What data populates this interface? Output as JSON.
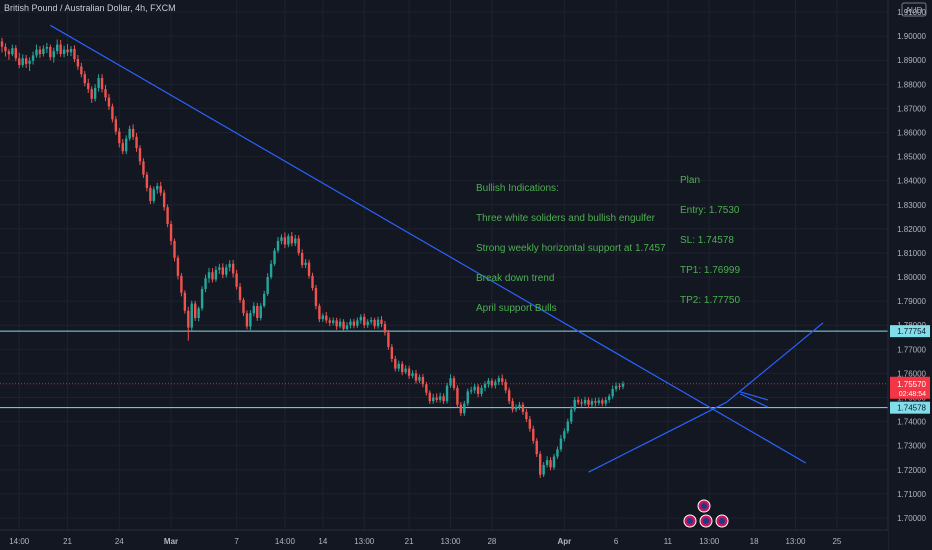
{
  "title": "British Pound / Australian Dollar, 4h, FXCM",
  "currency_badge": "AUD",
  "colors": {
    "background": "#131722",
    "grid": "#1e222d",
    "up": "#26a69a",
    "down": "#ef5350",
    "trendline": "#2962ff",
    "hline": "#80deea",
    "annotation": "#4caf50",
    "axis_text": "#b2b5be",
    "price_label": "#f23645"
  },
  "chart_data": {
    "type": "candlestick",
    "ylim": [
      1.695,
      1.915
    ],
    "y_ticks": [
      1.7,
      1.71,
      1.72,
      1.73,
      1.74,
      1.75,
      1.76,
      1.77,
      1.78,
      1.79,
      1.8,
      1.81,
      1.82,
      1.83,
      1.84,
      1.85,
      1.86,
      1.87,
      1.88,
      1.89,
      1.9,
      1.91
    ],
    "y_tick_labels": [
      "1.70000",
      "1.71000",
      "1.72000",
      "1.73000",
      "1.74000",
      "1.75000",
      "1.76000",
      "1.77000",
      "1.78000",
      "1.79000",
      "1.80000",
      "1.81000",
      "1.82000",
      "1.83000",
      "1.84000",
      "1.85000",
      "1.86000",
      "1.87000",
      "1.88000",
      "1.89000",
      "1.90000",
      "1.91000"
    ],
    "x_tick_labels": [
      "14:00",
      "21",
      "24",
      "Mar",
      "7",
      "14:00",
      "14",
      "13:00",
      "21",
      "13:00",
      "28",
      "Apr",
      "6",
      "11",
      "13:00",
      "18",
      "13:00",
      "25"
    ],
    "x_tick_bars": [
      5,
      19,
      34,
      49,
      68,
      82,
      93,
      105,
      118,
      130,
      142,
      163,
      178,
      193,
      205,
      218,
      230,
      242
    ],
    "last_price": {
      "value": 1.7557,
      "label": "1.75570",
      "countdown": "02:48:54"
    },
    "grid": true,
    "candles": [
      [
        1.8978,
        1.8993,
        1.8932,
        1.8956
      ],
      [
        1.8956,
        1.897,
        1.8915,
        1.8937
      ],
      [
        1.8937,
        1.8947,
        1.8902,
        1.8925
      ],
      [
        1.8925,
        1.8965,
        1.8917,
        1.895
      ],
      [
        1.895,
        1.8963,
        1.8896,
        1.8908
      ],
      [
        1.8908,
        1.8931,
        1.8867,
        1.888
      ],
      [
        1.888,
        1.8924,
        1.887,
        1.8908
      ],
      [
        1.8908,
        1.8922,
        1.8868,
        1.8885
      ],
      [
        1.8885,
        1.8912,
        1.8855,
        1.8898
      ],
      [
        1.8898,
        1.8936,
        1.8882,
        1.892
      ],
      [
        1.892,
        1.8965,
        1.891,
        1.8944
      ],
      [
        1.8944,
        1.8959,
        1.891,
        1.8926
      ],
      [
        1.8926,
        1.8962,
        1.8915,
        1.8948
      ],
      [
        1.8948,
        1.8972,
        1.893,
        1.8955
      ],
      [
        1.8955,
        1.8965,
        1.89,
        1.8912
      ],
      [
        1.8912,
        1.8952,
        1.889,
        1.8938
      ],
      [
        1.8938,
        1.8986,
        1.8925,
        1.8965
      ],
      [
        1.8965,
        1.8984,
        1.8914,
        1.8926
      ],
      [
        1.8926,
        1.896,
        1.8912,
        1.8944
      ],
      [
        1.8944,
        1.8967,
        1.8918,
        1.8933
      ],
      [
        1.8933,
        1.8959,
        1.8917,
        1.8947
      ],
      [
        1.8947,
        1.8962,
        1.8892,
        1.8905
      ],
      [
        1.8905,
        1.8922,
        1.886,
        1.8874
      ],
      [
        1.8874,
        1.8889,
        1.8829,
        1.8842
      ],
      [
        1.8842,
        1.8855,
        1.8792,
        1.8805
      ],
      [
        1.8805,
        1.8823,
        1.8764,
        1.878
      ],
      [
        1.878,
        1.8792,
        1.8723,
        1.874
      ],
      [
        1.874,
        1.88,
        1.8729,
        1.8785
      ],
      [
        1.8785,
        1.8842,
        1.877,
        1.8826
      ],
      [
        1.8826,
        1.8842,
        1.8766,
        1.878
      ],
      [
        1.878,
        1.8797,
        1.873,
        1.8745
      ],
      [
        1.8745,
        1.876,
        1.8694,
        1.8708
      ],
      [
        1.8708,
        1.872,
        1.8642,
        1.8655
      ],
      [
        1.8655,
        1.8668,
        1.8591,
        1.8604
      ],
      [
        1.8604,
        1.8619,
        1.8538,
        1.8556
      ],
      [
        1.8556,
        1.8573,
        1.851,
        1.8522
      ],
      [
        1.8522,
        1.8588,
        1.851,
        1.8575
      ],
      [
        1.8575,
        1.8628,
        1.8566,
        1.8615
      ],
      [
        1.8615,
        1.8634,
        1.857,
        1.8582
      ],
      [
        1.8582,
        1.8598,
        1.852,
        1.8535
      ],
      [
        1.8535,
        1.8547,
        1.8465,
        1.848
      ],
      [
        1.848,
        1.8493,
        1.8412,
        1.8425
      ],
      [
        1.8425,
        1.8437,
        1.8356,
        1.837
      ],
      [
        1.837,
        1.8381,
        1.8303,
        1.8316
      ],
      [
        1.8316,
        1.8376,
        1.8306,
        1.8364
      ],
      [
        1.8364,
        1.8391,
        1.8346,
        1.8378
      ],
      [
        1.8378,
        1.8395,
        1.8337,
        1.835
      ],
      [
        1.835,
        1.8362,
        1.8276,
        1.829
      ],
      [
        1.829,
        1.8302,
        1.8207,
        1.822
      ],
      [
        1.822,
        1.8233,
        1.8133,
        1.815
      ],
      [
        1.815,
        1.816,
        1.8065,
        1.808
      ],
      [
        1.808,
        1.809,
        1.799,
        1.8005
      ],
      [
        1.8005,
        1.8017,
        1.792,
        1.7935
      ],
      [
        1.7935,
        1.7945,
        1.7848,
        1.786
      ],
      [
        1.786,
        1.7877,
        1.7736,
        1.779
      ],
      [
        1.779,
        1.7902,
        1.7779,
        1.789
      ],
      [
        1.789,
        1.7901,
        1.7818,
        1.783
      ],
      [
        1.783,
        1.7878,
        1.7816,
        1.787
      ],
      [
        1.787,
        1.7962,
        1.786,
        1.795
      ],
      [
        1.795,
        1.801,
        1.7937,
        1.7995
      ],
      [
        1.7995,
        1.8038,
        1.7976,
        1.802
      ],
      [
        1.802,
        1.8037,
        1.7977,
        1.799
      ],
      [
        1.799,
        1.8045,
        1.798,
        1.803
      ],
      [
        1.803,
        1.8055,
        1.8013,
        1.804
      ],
      [
        1.804,
        1.8057,
        1.7995,
        1.801
      ],
      [
        1.801,
        1.8053,
        1.7998,
        1.804
      ],
      [
        1.804,
        1.807,
        1.8024,
        1.8055
      ],
      [
        1.8055,
        1.8071,
        1.7998,
        1.8015
      ],
      [
        1.8015,
        1.803,
        1.7948,
        1.796
      ],
      [
        1.796,
        1.7975,
        1.7893,
        1.7905
      ],
      [
        1.7905,
        1.7914,
        1.7838,
        1.785
      ],
      [
        1.785,
        1.7862,
        1.7783,
        1.7795
      ],
      [
        1.7795,
        1.7862,
        1.778,
        1.785
      ],
      [
        1.785,
        1.7895,
        1.7837,
        1.788
      ],
      [
        1.788,
        1.7893,
        1.7818,
        1.783
      ],
      [
        1.783,
        1.7892,
        1.782,
        1.788
      ],
      [
        1.788,
        1.7943,
        1.7873,
        1.793
      ],
      [
        1.793,
        1.8016,
        1.7922,
        1.8
      ],
      [
        1.8,
        1.807,
        1.7991,
        1.8055
      ],
      [
        1.8055,
        1.812,
        1.8046,
        1.811
      ],
      [
        1.811,
        1.8166,
        1.8101,
        1.815
      ],
      [
        1.815,
        1.8177,
        1.8136,
        1.8165
      ],
      [
        1.8165,
        1.8185,
        1.812,
        1.8135
      ],
      [
        1.8135,
        1.818,
        1.8124,
        1.817
      ],
      [
        1.817,
        1.8187,
        1.8128,
        1.814
      ],
      [
        1.814,
        1.8175,
        1.8128,
        1.816
      ],
      [
        1.816,
        1.8173,
        1.8089,
        1.81
      ],
      [
        1.81,
        1.8115,
        1.8038,
        1.805
      ],
      [
        1.805,
        1.8075,
        1.8037,
        1.806
      ],
      [
        1.806,
        1.8072,
        1.7994,
        1.8005
      ],
      [
        1.8005,
        1.8018,
        1.7944,
        1.7955
      ],
      [
        1.7955,
        1.7967,
        1.7866,
        1.788
      ],
      [
        1.788,
        1.789,
        1.7813,
        1.7825
      ],
      [
        1.7825,
        1.785,
        1.7814,
        1.784
      ],
      [
        1.784,
        1.7855,
        1.7808,
        1.782
      ],
      [
        1.782,
        1.7832,
        1.7796,
        1.781
      ],
      [
        1.781,
        1.7832,
        1.78,
        1.782
      ],
      [
        1.782,
        1.7831,
        1.7781,
        1.7795
      ],
      [
        1.7795,
        1.7828,
        1.7787,
        1.7815
      ],
      [
        1.7815,
        1.7825,
        1.7772,
        1.7785
      ],
      [
        1.7785,
        1.7813,
        1.7774,
        1.78
      ],
      [
        1.78,
        1.7827,
        1.7787,
        1.7815
      ],
      [
        1.7815,
        1.7826,
        1.7787,
        1.7798
      ],
      [
        1.7798,
        1.7832,
        1.7789,
        1.782
      ],
      [
        1.782,
        1.7846,
        1.7806,
        1.7835
      ],
      [
        1.7835,
        1.7848,
        1.7788,
        1.78
      ],
      [
        1.78,
        1.7825,
        1.7789,
        1.7815
      ],
      [
        1.7815,
        1.7834,
        1.7804,
        1.7822
      ],
      [
        1.7822,
        1.7831,
        1.7785,
        1.7796
      ],
      [
        1.7796,
        1.7835,
        1.7786,
        1.7823
      ],
      [
        1.7823,
        1.7838,
        1.7792,
        1.7805
      ],
      [
        1.7805,
        1.7818,
        1.7757,
        1.777
      ],
      [
        1.777,
        1.7781,
        1.7698,
        1.771
      ],
      [
        1.771,
        1.7722,
        1.7647,
        1.766
      ],
      [
        1.766,
        1.7673,
        1.7608,
        1.762
      ],
      [
        1.762,
        1.7653,
        1.7608,
        1.764
      ],
      [
        1.764,
        1.7651,
        1.7593,
        1.7605
      ],
      [
        1.7605,
        1.7634,
        1.7597,
        1.762
      ],
      [
        1.762,
        1.7632,
        1.7577,
        1.759
      ],
      [
        1.759,
        1.7613,
        1.758,
        1.76
      ],
      [
        1.76,
        1.7614,
        1.7558,
        1.757
      ],
      [
        1.757,
        1.7596,
        1.756,
        1.7585
      ],
      [
        1.7585,
        1.7597,
        1.7542,
        1.7555
      ],
      [
        1.7555,
        1.7565,
        1.7508,
        1.752
      ],
      [
        1.752,
        1.753,
        1.7473,
        1.7485
      ],
      [
        1.7485,
        1.7515,
        1.7474,
        1.75
      ],
      [
        1.75,
        1.7517,
        1.7479,
        1.749
      ],
      [
        1.749,
        1.752,
        1.7479,
        1.7505
      ],
      [
        1.7505,
        1.7517,
        1.7473,
        1.7485
      ],
      [
        1.7485,
        1.7561,
        1.7475,
        1.755
      ],
      [
        1.755,
        1.7596,
        1.754,
        1.758
      ],
      [
        1.758,
        1.759,
        1.7529,
        1.754
      ],
      [
        1.754,
        1.7551,
        1.7458,
        1.747
      ],
      [
        1.747,
        1.7481,
        1.7423,
        1.7435
      ],
      [
        1.7435,
        1.7486,
        1.7424,
        1.7475
      ],
      [
        1.7475,
        1.7537,
        1.7465,
        1.7525
      ],
      [
        1.7525,
        1.7545,
        1.7514,
        1.753
      ],
      [
        1.753,
        1.7556,
        1.7517,
        1.7545
      ],
      [
        1.7545,
        1.7556,
        1.7501,
        1.7515
      ],
      [
        1.7515,
        1.7551,
        1.7504,
        1.754
      ],
      [
        1.754,
        1.7567,
        1.7526,
        1.7555
      ],
      [
        1.7555,
        1.7581,
        1.7541,
        1.757
      ],
      [
        1.757,
        1.758,
        1.7538,
        1.755
      ],
      [
        1.755,
        1.7575,
        1.7537,
        1.7565
      ],
      [
        1.7565,
        1.7591,
        1.7552,
        1.758
      ],
      [
        1.758,
        1.7596,
        1.7551,
        1.7565
      ],
      [
        1.7565,
        1.7577,
        1.7518,
        1.753
      ],
      [
        1.753,
        1.7541,
        1.7473,
        1.7485
      ],
      [
        1.7485,
        1.7497,
        1.7438,
        1.745
      ],
      [
        1.745,
        1.7472,
        1.744,
        1.746
      ],
      [
        1.746,
        1.7482,
        1.7449,
        1.747
      ],
      [
        1.747,
        1.7481,
        1.7428,
        1.744
      ],
      [
        1.744,
        1.7452,
        1.7398,
        1.741
      ],
      [
        1.741,
        1.7423,
        1.7358,
        1.737
      ],
      [
        1.737,
        1.7383,
        1.7308,
        1.732
      ],
      [
        1.732,
        1.7331,
        1.7253,
        1.7265
      ],
      [
        1.7265,
        1.7277,
        1.7166,
        1.718
      ],
      [
        1.718,
        1.7232,
        1.717,
        1.722
      ],
      [
        1.722,
        1.7256,
        1.721,
        1.724
      ],
      [
        1.724,
        1.7252,
        1.7198,
        1.721
      ],
      [
        1.721,
        1.7266,
        1.72,
        1.7255
      ],
      [
        1.7255,
        1.7296,
        1.7245,
        1.7285
      ],
      [
        1.7285,
        1.7345,
        1.7275,
        1.733
      ],
      [
        1.733,
        1.7372,
        1.7318,
        1.736
      ],
      [
        1.736,
        1.7412,
        1.735,
        1.74
      ],
      [
        1.74,
        1.7463,
        1.739,
        1.745
      ],
      [
        1.745,
        1.7502,
        1.744,
        1.749
      ],
      [
        1.749,
        1.7504,
        1.747,
        1.748
      ],
      [
        1.748,
        1.7494,
        1.7462,
        1.7475
      ],
      [
        1.7475,
        1.7503,
        1.7465,
        1.749
      ],
      [
        1.749,
        1.75,
        1.7456,
        1.747
      ],
      [
        1.747,
        1.7496,
        1.746,
        1.7485
      ],
      [
        1.7485,
        1.7499,
        1.7463,
        1.7478
      ],
      [
        1.7478,
        1.75,
        1.7467,
        1.7488
      ],
      [
        1.7488,
        1.7497,
        1.7464,
        1.7475
      ],
      [
        1.7475,
        1.7502,
        1.7464,
        1.749
      ],
      [
        1.749,
        1.7515,
        1.7478,
        1.7505
      ],
      [
        1.7505,
        1.755,
        1.7495,
        1.7535
      ],
      [
        1.7535,
        1.7562,
        1.7525,
        1.7548
      ],
      [
        1.7548,
        1.7559,
        1.7532,
        1.7545
      ],
      [
        1.7545,
        1.7567,
        1.7535,
        1.7557
      ]
    ],
    "trendlines": [
      {
        "from": {
          "bar": 14,
          "price": 1.9045
        },
        "to": {
          "bar": 233,
          "price": 1.7228
        }
      },
      {
        "from": {
          "bar": 170,
          "price": 1.719
        },
        "to": {
          "bar": 210,
          "price": 1.748
        }
      },
      {
        "from": {
          "bar": 210,
          "price": 1.748
        },
        "to": {
          "bar": 238,
          "price": 1.781
        }
      },
      {
        "from": {
          "bar": 214,
          "price": 1.7523
        },
        "to": {
          "bar": 222,
          "price": 1.749
        }
      },
      {
        "from": {
          "bar": 214,
          "price": 1.7515
        },
        "to": {
          "bar": 222,
          "price": 1.746
        }
      }
    ],
    "hlines": [
      {
        "value": 1.77754,
        "label": "1.77754"
      },
      {
        "value": 1.74578,
        "label": "1.74578"
      }
    ]
  },
  "annotations": {
    "bullish": {
      "heading": "Bullish Indications:",
      "lines": [
        "Three white soliders and bullish engulfer",
        "Strong weekly horizontal support at 1.7457",
        "Break down trend",
        "April support Bulls"
      ]
    },
    "plan": {
      "heading": "Plan",
      "lines": [
        "Entry: 1.7530",
        "SL: 1.74578",
        "TP1: 1.76999",
        "TP2: 1.77750"
      ]
    }
  }
}
